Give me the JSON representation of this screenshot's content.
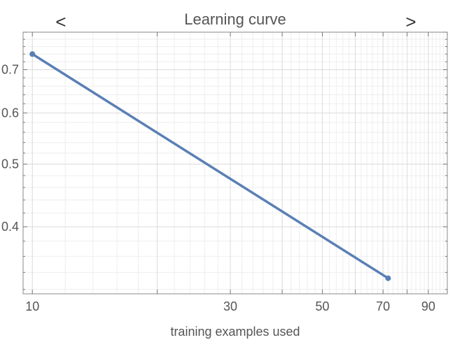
{
  "chart_data": {
    "type": "line",
    "title": "Learning curve",
    "xlabel": "training examples used",
    "ylabel": "",
    "x_scale": "log",
    "y_scale": "log",
    "xlim": [
      9.5,
      100
    ],
    "ylim": [
      0.315,
      0.8
    ],
    "x_ticks": [
      10,
      30,
      50,
      70,
      90
    ],
    "y_ticks": [
      0.4,
      0.5,
      0.6,
      0.7
    ],
    "grid": true,
    "legend": "none",
    "series": [
      {
        "name": "",
        "x": [
          10,
          72
        ],
        "y": [
          0.74,
          0.333
        ],
        "color": "#5a7fb5"
      }
    ]
  },
  "nav": {
    "prev": "<",
    "next": ">"
  }
}
